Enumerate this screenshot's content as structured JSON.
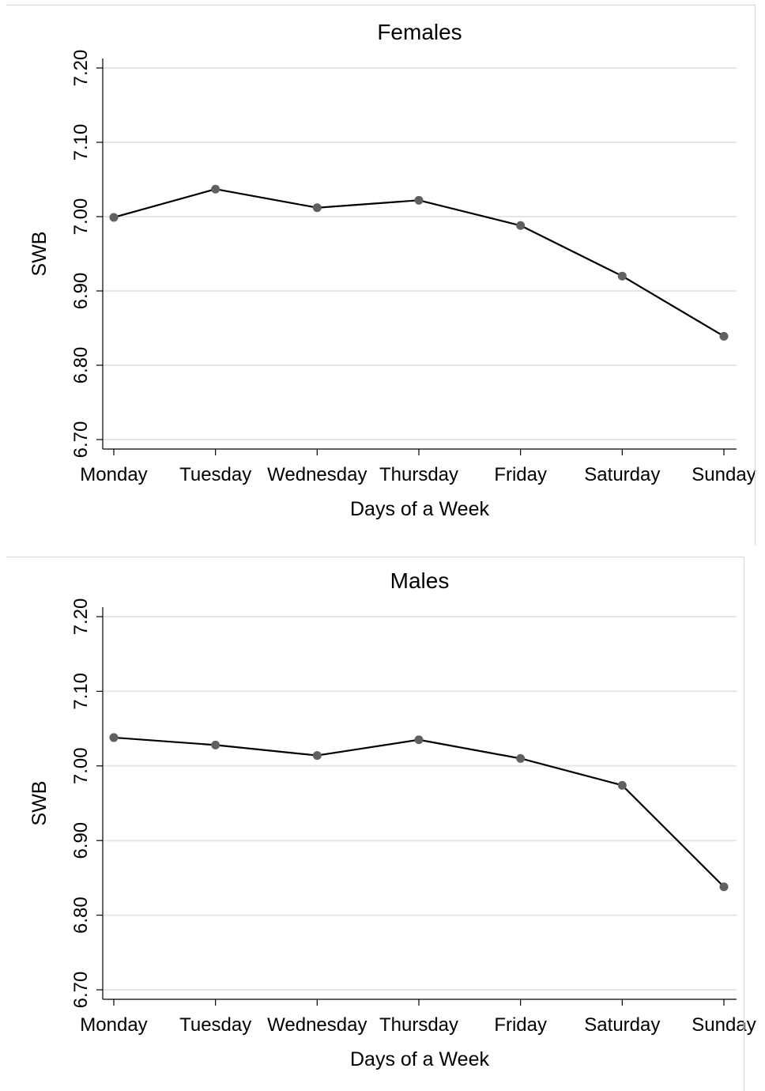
{
  "chart_data": [
    {
      "type": "line",
      "title": "Females",
      "xlabel": "Days of a Week",
      "ylabel": "SWB",
      "categories": [
        "Monday",
        "Tuesday",
        "Wednesday",
        "Thursday",
        "Friday",
        "Saturday",
        "Sunday"
      ],
      "values": [
        6.999,
        7.037,
        7.012,
        7.022,
        6.988,
        6.92,
        6.839
      ],
      "ylim": [
        6.7,
        7.2
      ],
      "yticks": [
        "6.70",
        "6.80",
        "6.90",
        "7.00",
        "7.10",
        "7.20"
      ],
      "grid": true,
      "legend": "none",
      "line_color": "#000000",
      "marker_color": "#606060"
    },
    {
      "type": "line",
      "title": "Males",
      "xlabel": "Days of a Week",
      "ylabel": "SWB",
      "categories": [
        "Monday",
        "Tuesday",
        "Wednesday",
        "Thursday",
        "Friday",
        "Saturday",
        "Sunday"
      ],
      "values": [
        7.038,
        7.028,
        7.014,
        7.035,
        7.01,
        6.974,
        6.838
      ],
      "ylim": [
        6.7,
        7.2
      ],
      "yticks": [
        "6.70",
        "6.80",
        "6.90",
        "7.00",
        "7.10",
        "7.20"
      ],
      "grid": true,
      "legend": "none",
      "line_color": "#000000",
      "marker_color": "#606060"
    }
  ]
}
